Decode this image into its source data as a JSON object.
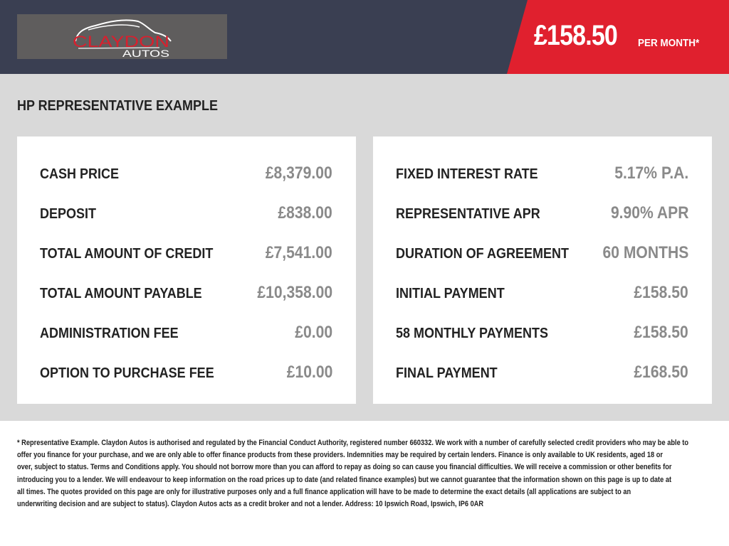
{
  "header": {
    "logo": {
      "line1": "CLAYDON",
      "line2": "AUTOS"
    },
    "price": "£158.50",
    "per_month": "PER MONTH*",
    "colors": {
      "dark": "#3a3f52",
      "accent": "#e0202e"
    }
  },
  "main": {
    "title": "HP REPRESENTATIVE EXAMPLE",
    "left_rows": [
      {
        "label": "CASH PRICE",
        "value": "£8,379.00"
      },
      {
        "label": "DEPOSIT",
        "value": "£838.00"
      },
      {
        "label": "TOTAL AMOUNT OF CREDIT",
        "value": "£7,541.00"
      },
      {
        "label": "TOTAL AMOUNT PAYABLE",
        "value": "£10,358.00"
      },
      {
        "label": "ADMINISTRATION FEE",
        "value": "£0.00"
      },
      {
        "label": "OPTION TO PURCHASE FEE",
        "value": "£10.00"
      }
    ],
    "right_rows": [
      {
        "label": "FIXED INTEREST RATE",
        "value": "5.17% P.A."
      },
      {
        "label": "REPRESENTATIVE APR",
        "value": "9.90% APR"
      },
      {
        "label": "DURATION OF AGREEMENT",
        "value": "60 MONTHS"
      },
      {
        "label": "INITIAL PAYMENT",
        "value": "£158.50"
      },
      {
        "label": "58 MONTHLY PAYMENTS",
        "value": "£158.50"
      },
      {
        "label": "FINAL PAYMENT",
        "value": "£168.50"
      }
    ]
  },
  "footer": {
    "lines": [
      "* Representative Example. Claydon Autos is authorised and regulated by the Financial Conduct Authority, registered number 660332. We work with a number of carefully selected credit providers who may be able to",
      "offer you finance for your purchase, and we are only able to offer finance products from these providers. Indemnities may be required by certain lenders. Finance is only available to UK residents, aged 18 or",
      "over, subject to status. Terms and Conditions apply. You should not borrow more than you can afford to repay as doing so can cause you financial difficulties. We will receive a commission or other benefits for",
      "introducing you to a lender. We will endeavour to keep information on the road prices up to date (and related finance examples) but we cannot guarantee that the information shown on this page is up to date at",
      "all times. The quotes provided on this page are only for illustrative purposes only and a full finance application will have to be made to determine the exact details (all applications are subject to an",
      "underwriting decision and are subject to status). Claydon Autos acts as a credit broker and not a lender. Address: 10 Ipswich Road, Ipswich, IP6 0AR"
    ]
  }
}
